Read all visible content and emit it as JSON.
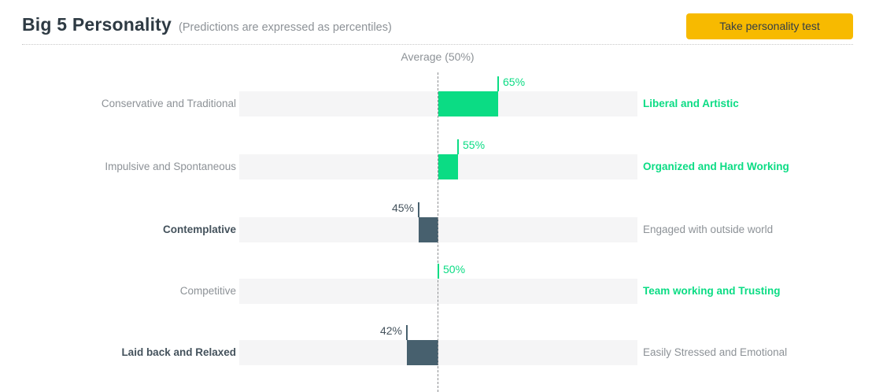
{
  "header": {
    "title": "Big 5 Personality",
    "subtitle": "(Predictions are expressed as percentiles)",
    "cta_label": "Take personality test"
  },
  "chart": {
    "average_label": "Average (50%)",
    "rows": [
      {
        "left_label": "Conservative and Traditional",
        "right_label": "Liberal and Artistic",
        "value": 65,
        "percent_label": "65%"
      },
      {
        "left_label": "Impulsive and Spontaneous",
        "right_label": "Organized and Hard Working",
        "value": 55,
        "percent_label": "55%"
      },
      {
        "left_label": "Contemplative",
        "right_label": "Engaged with outside world",
        "value": 45,
        "percent_label": "45%"
      },
      {
        "left_label": "Competitive",
        "right_label": "Team working and Trusting",
        "value": 50,
        "percent_label": "50%"
      },
      {
        "left_label": "Laid back and Relaxed",
        "right_label": "Easily Stressed and Emotional",
        "value": 42,
        "percent_label": "42%"
      }
    ]
  },
  "colors": {
    "green": "#0bdc84",
    "slate": "#47606e",
    "dark_text": "#44525c",
    "gray_text": "#8d9297",
    "title_text": "#2e3a43",
    "track": "#f5f5f6",
    "yellow": "#f7ba00",
    "button_text": "#333e47",
    "dashed_line": "#8c8e91",
    "divider": "#c9c9c9"
  },
  "chart_data": {
    "type": "bar",
    "subtype": "horizontal-diverging",
    "title": "Big 5 Personality",
    "subtitle": "(Predictions are expressed as percentiles)",
    "baseline_label": "Average (50%)",
    "baseline_value": 50,
    "xlim": [
      0,
      100
    ],
    "grid": false,
    "categories_left": [
      "Conservative and Traditional",
      "Impulsive and Spontaneous",
      "Contemplative",
      "Competitive",
      "Laid back and Relaxed"
    ],
    "categories_right": [
      "Liberal and Artistic",
      "Organized and Hard Working",
      "Engaged with outside world",
      "Team working and Trusting",
      "Easily Stressed and Emotional"
    ],
    "values": [
      65,
      55,
      45,
      50,
      42
    ],
    "above_baseline_color": "#0bdc84",
    "below_baseline_color": "#47606e"
  }
}
